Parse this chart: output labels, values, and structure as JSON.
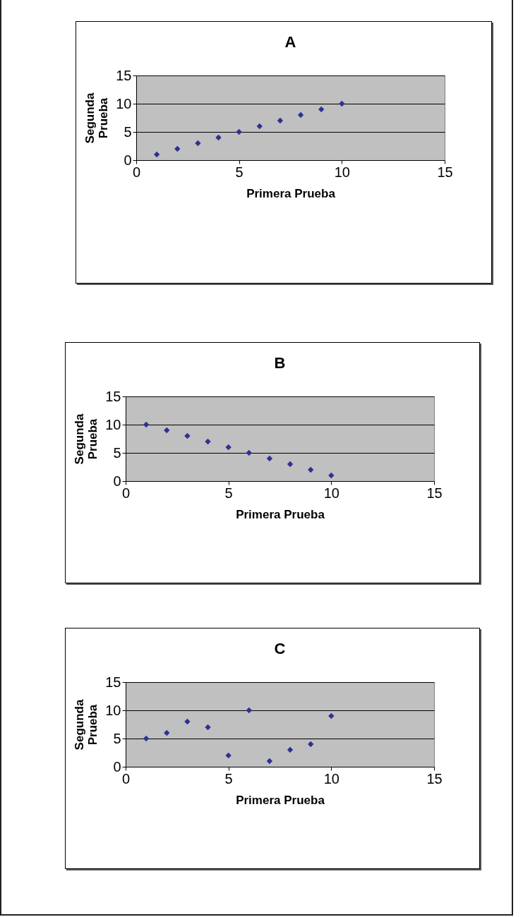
{
  "chart_data": [
    {
      "type": "scatter",
      "title": "A",
      "xlabel": "Primera Prueba",
      "ylabel": "Segunda Prueba",
      "x": [
        1,
        2,
        3,
        4,
        5,
        6,
        7,
        8,
        9,
        10
      ],
      "series": [
        {
          "color": "#2e3192",
          "values": [
            1,
            2,
            3,
            4,
            5,
            6,
            7,
            8,
            9,
            10
          ]
        }
      ],
      "xlim": [
        0,
        15
      ],
      "ylim": [
        0,
        15
      ],
      "xticks": [
        0,
        5,
        10,
        15
      ],
      "yticks": [
        0,
        5,
        10,
        15
      ],
      "grid": "y",
      "marker": "diamond"
    },
    {
      "type": "scatter",
      "title": "B",
      "xlabel": "Primera Prueba",
      "ylabel": "Segunda Prueba",
      "x": [
        1,
        2,
        3,
        4,
        5,
        6,
        7,
        8,
        9,
        10
      ],
      "series": [
        {
          "color": "#2e3192",
          "values": [
            10,
            9,
            8,
            7,
            6,
            5,
            4,
            3,
            2,
            1
          ]
        }
      ],
      "xlim": [
        0,
        15
      ],
      "ylim": [
        0,
        15
      ],
      "xticks": [
        0,
        5,
        10,
        15
      ],
      "yticks": [
        0,
        5,
        10,
        15
      ],
      "grid": "y",
      "marker": "diamond"
    },
    {
      "type": "scatter",
      "title": "C",
      "xlabel": "Primera Prueba",
      "ylabel": "Segunda Prueba",
      "x": [
        1,
        2,
        3,
        4,
        5,
        6,
        7,
        8,
        9,
        10
      ],
      "series": [
        {
          "color": "#2e3192",
          "values": [
            5,
            6,
            8,
            7,
            2,
            10,
            1,
            3,
            4,
            9
          ]
        }
      ],
      "xlim": [
        0,
        15
      ],
      "ylim": [
        0,
        15
      ],
      "xticks": [
        0,
        5,
        10,
        15
      ],
      "yticks": [
        0,
        5,
        10,
        15
      ],
      "grid": "y",
      "marker": "diamond"
    }
  ]
}
